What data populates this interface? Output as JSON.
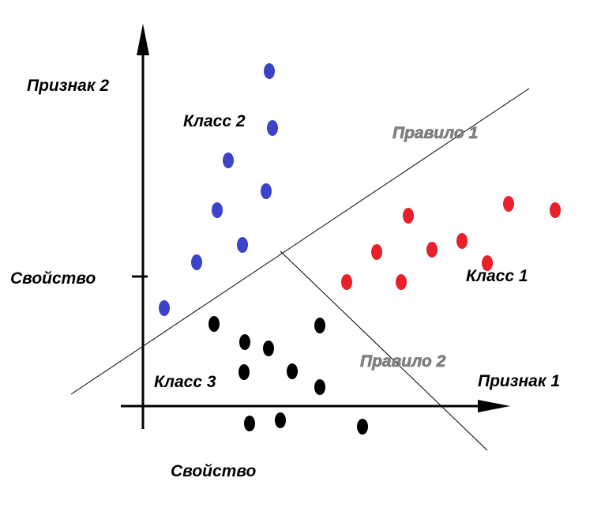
{
  "labels": {
    "y_axis": "Признак 2",
    "x_axis": "Признак 1",
    "y_tick": "Свойство",
    "x_tick": "Свойство",
    "rule1": "Правило 1",
    "rule2": "Правило 2",
    "class1": "Класс 1",
    "class2": "Класс 2",
    "class3": "Класс 3"
  },
  "colors": {
    "class1": "#e8202a",
    "class2": "#3b44c8",
    "class3": "#000000",
    "rule_text": "#808080"
  }
}
